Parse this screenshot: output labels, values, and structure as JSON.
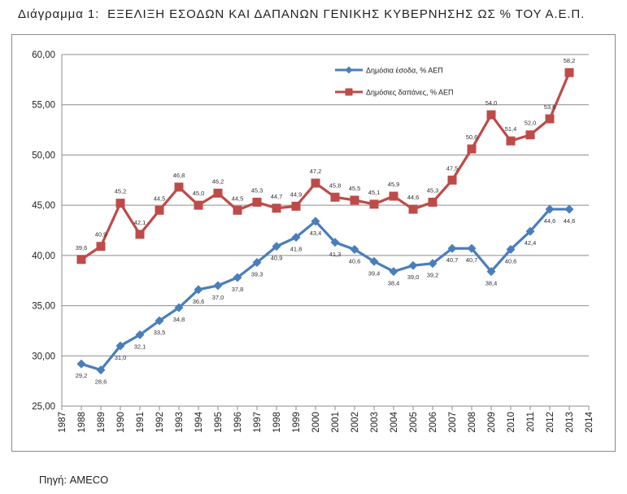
{
  "title_prefix": "Διάγραμμα 1:",
  "title": "ΕΞΕΛΙΞΗ ΕΣΟΔΩΝ ΚΑΙ ΔΑΠΑΝΩΝ ΓΕΝΙΚΗΣ ΚΥΒΕΡΝΗΣΗΣ ΩΣ % ΤΟΥ Α.Ε.Π.",
  "source": "Πηγή: AMECO",
  "chart_data": {
    "type": "line",
    "x": [
      1988,
      1989,
      1990,
      1991,
      1992,
      1993,
      1994,
      1995,
      1996,
      1997,
      1998,
      1999,
      2000,
      2001,
      2002,
      2003,
      2004,
      2005,
      2006,
      2007,
      2008,
      2009,
      2010,
      2011,
      2012,
      2013
    ],
    "xlim": [
      1987,
      2014
    ],
    "ylim": [
      25,
      60
    ],
    "y_ticks": [
      "25,00",
      "30,00",
      "35,00",
      "40,00",
      "45,00",
      "50,00",
      "55,00",
      "60,00"
    ],
    "x_ticks": [
      "1987",
      "1988",
      "1989",
      "1990",
      "1991",
      "1992",
      "1993",
      "1994",
      "1995",
      "1996",
      "1997",
      "1998",
      "1999",
      "2000",
      "2001",
      "2002",
      "2003",
      "2004",
      "2005",
      "2006",
      "2007",
      "2008",
      "2009",
      "2010",
      "2011",
      "2012",
      "2013",
      "2014"
    ],
    "grid": "horizontal",
    "legend": "top-center",
    "series": [
      {
        "name": "Δημόσια έσοδα, % ΑΕΠ",
        "color": "#4a7ebb",
        "marker": "diamond",
        "values": [
          29.2,
          28.6,
          31.0,
          32.1,
          33.5,
          34.8,
          36.6,
          37.0,
          37.8,
          39.3,
          40.9,
          41.8,
          43.4,
          41.3,
          40.6,
          39.4,
          38.4,
          39.0,
          39.2,
          40.7,
          40.7,
          38.4,
          40.6,
          42.4,
          44.6,
          44.6
        ],
        "labels": [
          "29,2",
          "28,6",
          "31,0",
          "32,1",
          "33,5",
          "34,8",
          "36,6",
          "37,0",
          "37,8",
          "39,3",
          "40,9",
          "41,8",
          "43,4",
          "41,3",
          "40,6",
          "39,4",
          "38,4",
          "39,0",
          "39,2",
          "40,7",
          "40,7",
          "38,4",
          "40,6",
          "42,4",
          "44,6",
          "44,6"
        ]
      },
      {
        "name": "Δημόσιες δαπάνες, % ΑΕΠ",
        "color": "#be4b48",
        "marker": "square",
        "values": [
          39.6,
          40.9,
          45.2,
          42.1,
          44.5,
          46.8,
          45.0,
          46.2,
          44.5,
          45.3,
          44.7,
          44.9,
          47.2,
          45.8,
          45.5,
          45.1,
          45.9,
          44.6,
          45.3,
          47.5,
          50.6,
          54.0,
          51.4,
          52.0,
          53.6,
          58.2
        ],
        "labels": [
          "39,6",
          "40,9",
          "45,2",
          "42,1",
          "44,5",
          "46,8",
          "45,0",
          "46,2",
          "44,5",
          "45,3",
          "44,7",
          "44,9",
          "47,2",
          "45,8",
          "45,5",
          "45,1",
          "45,9",
          "44,6",
          "45,3",
          "47,5",
          "50,6",
          "54,0",
          "51,4",
          "52,0",
          "53,6",
          "58,2"
        ]
      }
    ]
  }
}
